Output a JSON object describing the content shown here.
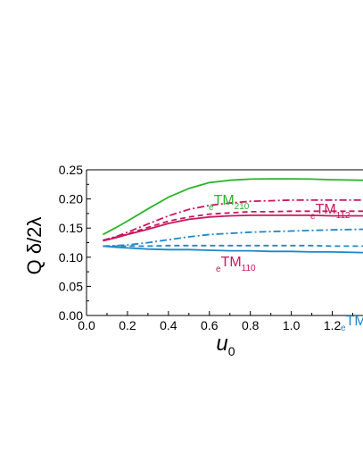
{
  "chart_data": {
    "type": "line",
    "xlabel": "u",
    "xlabel_sub": "0",
    "ylabel": "Q δ/2λ",
    "xlim": [
      0.0,
      1.35
    ],
    "ylim": [
      0.0,
      0.25
    ],
    "xticks": [
      "0.0",
      "0.2",
      "0.4",
      "0.6",
      "0.8",
      "1.0",
      "1.2"
    ],
    "yticks": [
      "0.00",
      "0.05",
      "0.10",
      "0.15",
      "0.20",
      "0.25"
    ],
    "grid": false,
    "colors": {
      "green": "#2bb32b",
      "magenta": "#c8185e",
      "blue": "#1e88c8"
    },
    "annotations": [
      {
        "pre": "e",
        "main": "TM",
        "sub": "210",
        "color": "#2bb32b"
      },
      {
        "pre": "e",
        "main": "TM",
        "sub": "112",
        "color": "#c8185e"
      },
      {
        "pre": "e",
        "main": "TM",
        "sub": "110",
        "color": "#c8185e"
      },
      {
        "pre": "e",
        "main": "TM",
        "sub": "",
        "color": "#1e88c8"
      }
    ],
    "series": [
      {
        "color": "#2bb32b",
        "dash": "solid",
        "x": [
          0.08,
          0.15,
          0.2,
          0.3,
          0.4,
          0.5,
          0.6,
          0.7,
          0.8,
          0.9,
          1.0,
          1.1,
          1.2,
          1.35
        ],
        "y": [
          0.139,
          0.152,
          0.162,
          0.183,
          0.203,
          0.218,
          0.228,
          0.232,
          0.234,
          0.2345,
          0.2345,
          0.234,
          0.233,
          0.232
        ]
      },
      {
        "color": "#c8185e",
        "dash": "dashdot",
        "x": [
          0.08,
          0.15,
          0.2,
          0.3,
          0.4,
          0.5,
          0.6,
          0.7,
          0.8,
          0.9,
          1.0,
          1.1,
          1.2,
          1.35
        ],
        "y": [
          0.129,
          0.136,
          0.143,
          0.157,
          0.171,
          0.182,
          0.189,
          0.193,
          0.196,
          0.197,
          0.198,
          0.198,
          0.198,
          0.198
        ]
      },
      {
        "color": "#c8185e",
        "dash": "dashed",
        "x": [
          0.08,
          0.15,
          0.2,
          0.3,
          0.4,
          0.5,
          0.6,
          0.7,
          0.8,
          0.9,
          1.0,
          1.1,
          1.2,
          1.35
        ],
        "y": [
          0.129,
          0.135,
          0.14,
          0.151,
          0.162,
          0.169,
          0.174,
          0.176,
          0.178,
          0.178,
          0.179,
          0.179,
          0.179,
          0.179
        ]
      },
      {
        "color": "#c8185e",
        "dash": "solid",
        "x": [
          0.08,
          0.15,
          0.2,
          0.3,
          0.4,
          0.5,
          0.6,
          0.7,
          0.8,
          0.9,
          1.0,
          1.1,
          1.2,
          1.35
        ],
        "y": [
          0.128,
          0.134,
          0.139,
          0.148,
          0.158,
          0.165,
          0.169,
          0.171,
          0.172,
          0.172,
          0.172,
          0.172,
          0.171,
          0.171
        ]
      },
      {
        "color": "#1e88c8",
        "dash": "dashdot",
        "x": [
          0.08,
          0.15,
          0.2,
          0.3,
          0.4,
          0.5,
          0.6,
          0.7,
          0.8,
          0.9,
          1.0,
          1.1,
          1.2,
          1.35
        ],
        "y": [
          0.119,
          0.12,
          0.121,
          0.125,
          0.13,
          0.135,
          0.139,
          0.141,
          0.143,
          0.144,
          0.145,
          0.146,
          0.147,
          0.148
        ]
      },
      {
        "color": "#1e88c8",
        "dash": "dashed",
        "x": [
          0.08,
          0.15,
          0.2,
          0.3,
          0.4,
          0.5,
          0.6,
          0.7,
          0.8,
          0.9,
          1.0,
          1.1,
          1.2,
          1.35
        ],
        "y": [
          0.119,
          0.119,
          0.119,
          0.119,
          0.12,
          0.12,
          0.12,
          0.12,
          0.12,
          0.12,
          0.12,
          0.12,
          0.119,
          0.119
        ]
      },
      {
        "color": "#1e88c8",
        "dash": "solid",
        "x": [
          0.08,
          0.15,
          0.2,
          0.3,
          0.4,
          0.5,
          0.6,
          0.7,
          0.8,
          0.9,
          1.0,
          1.1,
          1.2,
          1.35
        ],
        "y": [
          0.119,
          0.117,
          0.116,
          0.114,
          0.113,
          0.113,
          0.112,
          0.111,
          0.111,
          0.11,
          0.11,
          0.109,
          0.109,
          0.108
        ]
      }
    ]
  }
}
